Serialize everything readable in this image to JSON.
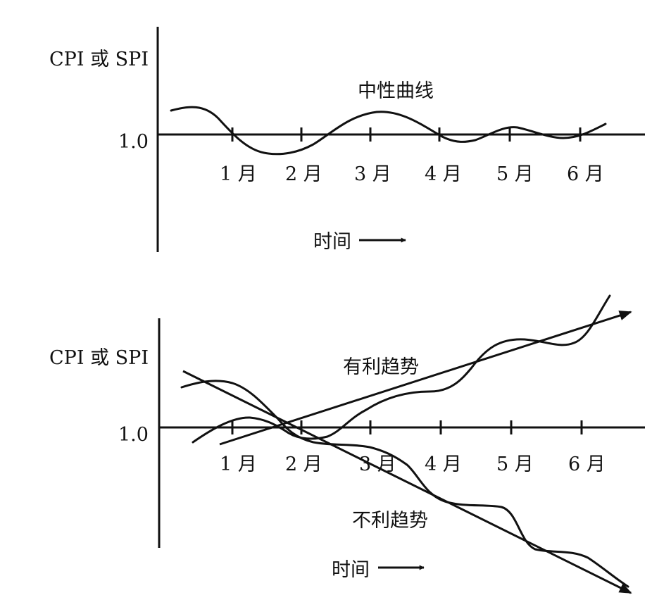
{
  "top_chart": {
    "y_axis_label": "CPI 或 SPI",
    "baseline_label": "1.0",
    "curve_label": "中性曲线",
    "x_ticks": [
      "1 月",
      "2 月",
      "3 月",
      "4 月",
      "5 月",
      "6 月"
    ],
    "time_label": "时间"
  },
  "bottom_chart": {
    "y_axis_label": "CPI 或 SPI",
    "baseline_label": "1.0",
    "favorable_label": "有利趋势",
    "unfavorable_label": "不利趋势",
    "x_ticks": [
      "1 月",
      "2 月",
      "3 月",
      "4 月",
      "5 月",
      "6 月"
    ],
    "time_label": "时间"
  }
}
